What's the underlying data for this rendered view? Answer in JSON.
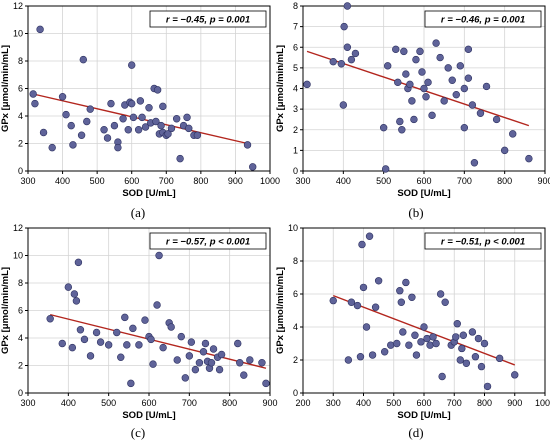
{
  "chart_data": [
    {
      "type": "scatter",
      "panel_label": "(a)",
      "xlabel": "SOD [U/mL]",
      "ylabel": "GPx [μmol/min/mL]",
      "xlim": [
        300,
        1000
      ],
      "ylim": [
        0,
        12
      ],
      "xticks": [
        300,
        400,
        500,
        600,
        700,
        800,
        900,
        1000
      ],
      "yticks": [
        0,
        2,
        4,
        6,
        8,
        10,
        12
      ],
      "grid": true,
      "annotation": "r = −0.45, p = 0.001",
      "trend": {
        "x": [
          315,
          935
        ],
        "y": [
          5.6,
          2.0
        ]
      },
      "points": [
        [
          315,
          5.6
        ],
        [
          320,
          4.9
        ],
        [
          335,
          10.3
        ],
        [
          345,
          2.8
        ],
        [
          370,
          1.7
        ],
        [
          400,
          5.4
        ],
        [
          410,
          4.1
        ],
        [
          425,
          3.3
        ],
        [
          430,
          1.9
        ],
        [
          455,
          2.6
        ],
        [
          460,
          8.1
        ],
        [
          470,
          3.6
        ],
        [
          480,
          4.5
        ],
        [
          520,
          3.0
        ],
        [
          530,
          2.4
        ],
        [
          540,
          4.9
        ],
        [
          550,
          3.3
        ],
        [
          560,
          2.1
        ],
        [
          560,
          1.7
        ],
        [
          575,
          3.8
        ],
        [
          580,
          4.8
        ],
        [
          590,
          3.0
        ],
        [
          595,
          5.0
        ],
        [
          600,
          7.7
        ],
        [
          600,
          4.9
        ],
        [
          605,
          3.9
        ],
        [
          620,
          3.0
        ],
        [
          625,
          5.1
        ],
        [
          630,
          3.9
        ],
        [
          640,
          3.2
        ],
        [
          650,
          4.6
        ],
        [
          655,
          3.5
        ],
        [
          665,
          6.0
        ],
        [
          670,
          3.6
        ],
        [
          675,
          5.9
        ],
        [
          680,
          2.7
        ],
        [
          685,
          3.3
        ],
        [
          690,
          2.8
        ],
        [
          690,
          4.7
        ],
        [
          700,
          2.6
        ],
        [
          705,
          2.7
        ],
        [
          715,
          3.1
        ],
        [
          730,
          3.8
        ],
        [
          740,
          0.9
        ],
        [
          750,
          3.3
        ],
        [
          760,
          3.9
        ],
        [
          765,
          3.1
        ],
        [
          780,
          2.6
        ],
        [
          790,
          2.6
        ],
        [
          935,
          1.9
        ],
        [
          950,
          0.3
        ]
      ]
    },
    {
      "type": "scatter",
      "panel_label": "(b)",
      "xlabel": "SOD [U/mL]",
      "ylabel": "GPx [μmol/min/mL]",
      "xlim": [
        300,
        900
      ],
      "ylim": [
        0,
        8
      ],
      "xticks": [
        300,
        400,
        500,
        600,
        700,
        800,
        900
      ],
      "yticks": [
        0,
        1,
        2,
        3,
        4,
        5,
        6,
        7,
        8
      ],
      "grid": true,
      "annotation": "r = −0.46, p = 0.001",
      "trend": {
        "x": [
          310,
          860
        ],
        "y": [
          5.8,
          2.2
        ]
      },
      "points": [
        [
          310,
          4.2
        ],
        [
          375,
          5.3
        ],
        [
          395,
          5.2
        ],
        [
          400,
          3.2
        ],
        [
          402,
          7.0
        ],
        [
          410,
          8.0
        ],
        [
          410,
          6.0
        ],
        [
          420,
          5.4
        ],
        [
          430,
          5.7
        ],
        [
          500,
          2.1
        ],
        [
          505,
          0.1
        ],
        [
          510,
          5.1
        ],
        [
          530,
          5.9
        ],
        [
          535,
          4.3
        ],
        [
          540,
          2.4
        ],
        [
          545,
          2.0
        ],
        [
          550,
          5.8
        ],
        [
          555,
          4.7
        ],
        [
          560,
          4.0
        ],
        [
          565,
          4.2
        ],
        [
          570,
          3.4
        ],
        [
          575,
          2.5
        ],
        [
          580,
          5.4
        ],
        [
          590,
          5.8
        ],
        [
          595,
          4.8
        ],
        [
          600,
          4.0
        ],
        [
          605,
          3.6
        ],
        [
          610,
          4.3
        ],
        [
          620,
          2.7
        ],
        [
          630,
          6.2
        ],
        [
          640,
          5.5
        ],
        [
          650,
          3.4
        ],
        [
          660,
          5.0
        ],
        [
          670,
          4.4
        ],
        [
          680,
          3.7
        ],
        [
          690,
          5.1
        ],
        [
          700,
          2.1
        ],
        [
          700,
          4.0
        ],
        [
          710,
          4.5
        ],
        [
          710,
          5.9
        ],
        [
          720,
          3.2
        ],
        [
          725,
          0.4
        ],
        [
          740,
          2.8
        ],
        [
          755,
          4.1
        ],
        [
          780,
          2.5
        ],
        [
          800,
          1.0
        ],
        [
          820,
          1.8
        ],
        [
          860,
          0.6
        ]
      ]
    },
    {
      "type": "scatter",
      "panel_label": "(c)",
      "xlabel": "SOD [U/mL]",
      "ylabel": "GPx [μmol/min/mL]",
      "xlim": [
        300,
        900
      ],
      "ylim": [
        0,
        12
      ],
      "xticks": [
        300,
        400,
        500,
        600,
        700,
        800,
        900
      ],
      "yticks": [
        0,
        2,
        4,
        6,
        8,
        10,
        12
      ],
      "grid": true,
      "annotation": "r = −0.57, p < 0.001",
      "trend": {
        "x": [
          355,
          890
        ],
        "y": [
          5.7,
          1.8
        ]
      },
      "points": [
        [
          355,
          5.4
        ],
        [
          385,
          3.6
        ],
        [
          400,
          7.7
        ],
        [
          410,
          3.3
        ],
        [
          415,
          7.2
        ],
        [
          420,
          6.7
        ],
        [
          425,
          9.5
        ],
        [
          430,
          4.6
        ],
        [
          440,
          3.9
        ],
        [
          455,
          2.7
        ],
        [
          470,
          4.4
        ],
        [
          480,
          3.7
        ],
        [
          500,
          3.5
        ],
        [
          520,
          4.4
        ],
        [
          530,
          2.6
        ],
        [
          540,
          5.5
        ],
        [
          545,
          3.5
        ],
        [
          555,
          0.7
        ],
        [
          560,
          4.7
        ],
        [
          575,
          3.5
        ],
        [
          590,
          5.3
        ],
        [
          600,
          4.1
        ],
        [
          605,
          3.9
        ],
        [
          610,
          2.1
        ],
        [
          620,
          6.4
        ],
        [
          625,
          10.0
        ],
        [
          635,
          3.3
        ],
        [
          650,
          5.1
        ],
        [
          655,
          4.8
        ],
        [
          670,
          2.4
        ],
        [
          680,
          4.1
        ],
        [
          690,
          1.1
        ],
        [
          700,
          2.7
        ],
        [
          705,
          3.7
        ],
        [
          715,
          1.7
        ],
        [
          725,
          2.2
        ],
        [
          735,
          3.0
        ],
        [
          740,
          3.6
        ],
        [
          745,
          2.3
        ],
        [
          750,
          1.8
        ],
        [
          755,
          2.2
        ],
        [
          760,
          3.2
        ],
        [
          770,
          2.6
        ],
        [
          775,
          1.7
        ],
        [
          780,
          2.8
        ],
        [
          820,
          3.6
        ],
        [
          825,
          2.2
        ],
        [
          835,
          1.3
        ],
        [
          850,
          2.4
        ],
        [
          880,
          2.2
        ],
        [
          890,
          0.7
        ]
      ]
    },
    {
      "type": "scatter",
      "panel_label": "(d)",
      "xlabel": "SOD [U/mL]",
      "ylabel": "GPx [μmol/min/mL]",
      "xlim": [
        200,
        1000
      ],
      "ylim": [
        0,
        10
      ],
      "xticks": [
        200,
        300,
        400,
        500,
        600,
        700,
        800,
        900,
        1000
      ],
      "yticks": [
        0,
        2,
        4,
        6,
        8,
        10
      ],
      "grid": true,
      "annotation": "r = −0.51, p < 0.001",
      "trend": {
        "x": [
          300,
          900
        ],
        "y": [
          5.9,
          1.7
        ]
      },
      "points": [
        [
          300,
          5.6
        ],
        [
          350,
          2.0
        ],
        [
          360,
          5.5
        ],
        [
          380,
          5.3
        ],
        [
          390,
          2.2
        ],
        [
          395,
          9.0
        ],
        [
          400,
          6.4
        ],
        [
          410,
          4.0
        ],
        [
          420,
          9.5
        ],
        [
          430,
          2.3
        ],
        [
          440,
          5.2
        ],
        [
          450,
          6.8
        ],
        [
          470,
          2.5
        ],
        [
          490,
          2.9
        ],
        [
          510,
          3.0
        ],
        [
          520,
          6.2
        ],
        [
          525,
          5.5
        ],
        [
          530,
          3.7
        ],
        [
          540,
          6.7
        ],
        [
          550,
          2.9
        ],
        [
          560,
          5.8
        ],
        [
          570,
          3.5
        ],
        [
          575,
          2.3
        ],
        [
          590,
          3.1
        ],
        [
          600,
          4.0
        ],
        [
          610,
          3.3
        ],
        [
          620,
          2.9
        ],
        [
          630,
          3.4
        ],
        [
          640,
          3.0
        ],
        [
          655,
          6.0
        ],
        [
          660,
          1.0
        ],
        [
          670,
          5.5
        ],
        [
          690,
          2.9
        ],
        [
          700,
          3.1
        ],
        [
          705,
          3.4
        ],
        [
          710,
          4.2
        ],
        [
          720,
          2.0
        ],
        [
          725,
          2.7
        ],
        [
          730,
          3.5
        ],
        [
          740,
          1.8
        ],
        [
          760,
          3.7
        ],
        [
          770,
          2.2
        ],
        [
          780,
          3.3
        ],
        [
          790,
          1.6
        ],
        [
          800,
          3.0
        ],
        [
          810,
          0.4
        ],
        [
          850,
          2.1
        ],
        [
          900,
          1.1
        ]
      ]
    }
  ],
  "colors": {
    "point_fill": "#5f6399",
    "point_stroke": "#2c3060",
    "trend_line": "#b3261e",
    "grid": "#d4d4d4",
    "axis": "#000000"
  }
}
